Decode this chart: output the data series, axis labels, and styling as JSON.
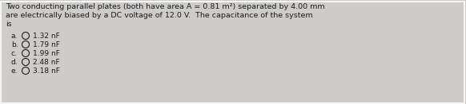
{
  "background_color": "#ceccca",
  "question_lines": [
    "Two conducting parallel plates (both have area A = 0.81 m²) separated by 4.00 mm",
    "are electrically biased by a DC voltage of 12.0 V.  The capacitance of the system",
    "is"
  ],
  "options": [
    {
      "label": "a.",
      "text": "1.32 nF"
    },
    {
      "label": "b.",
      "text": "1.79 nF"
    },
    {
      "label": "c.",
      "text": "1.99 nF"
    },
    {
      "label": "d.",
      "text": "2.48 nF"
    },
    {
      "label": "e.",
      "text": "3.18 nF"
    }
  ],
  "font_size_question": 6.8,
  "font_size_options": 6.5,
  "circle_size": 5.5,
  "text_color": "#1a1a1a",
  "border_color": "#ffffff",
  "font_family": "DejaVu Sans"
}
